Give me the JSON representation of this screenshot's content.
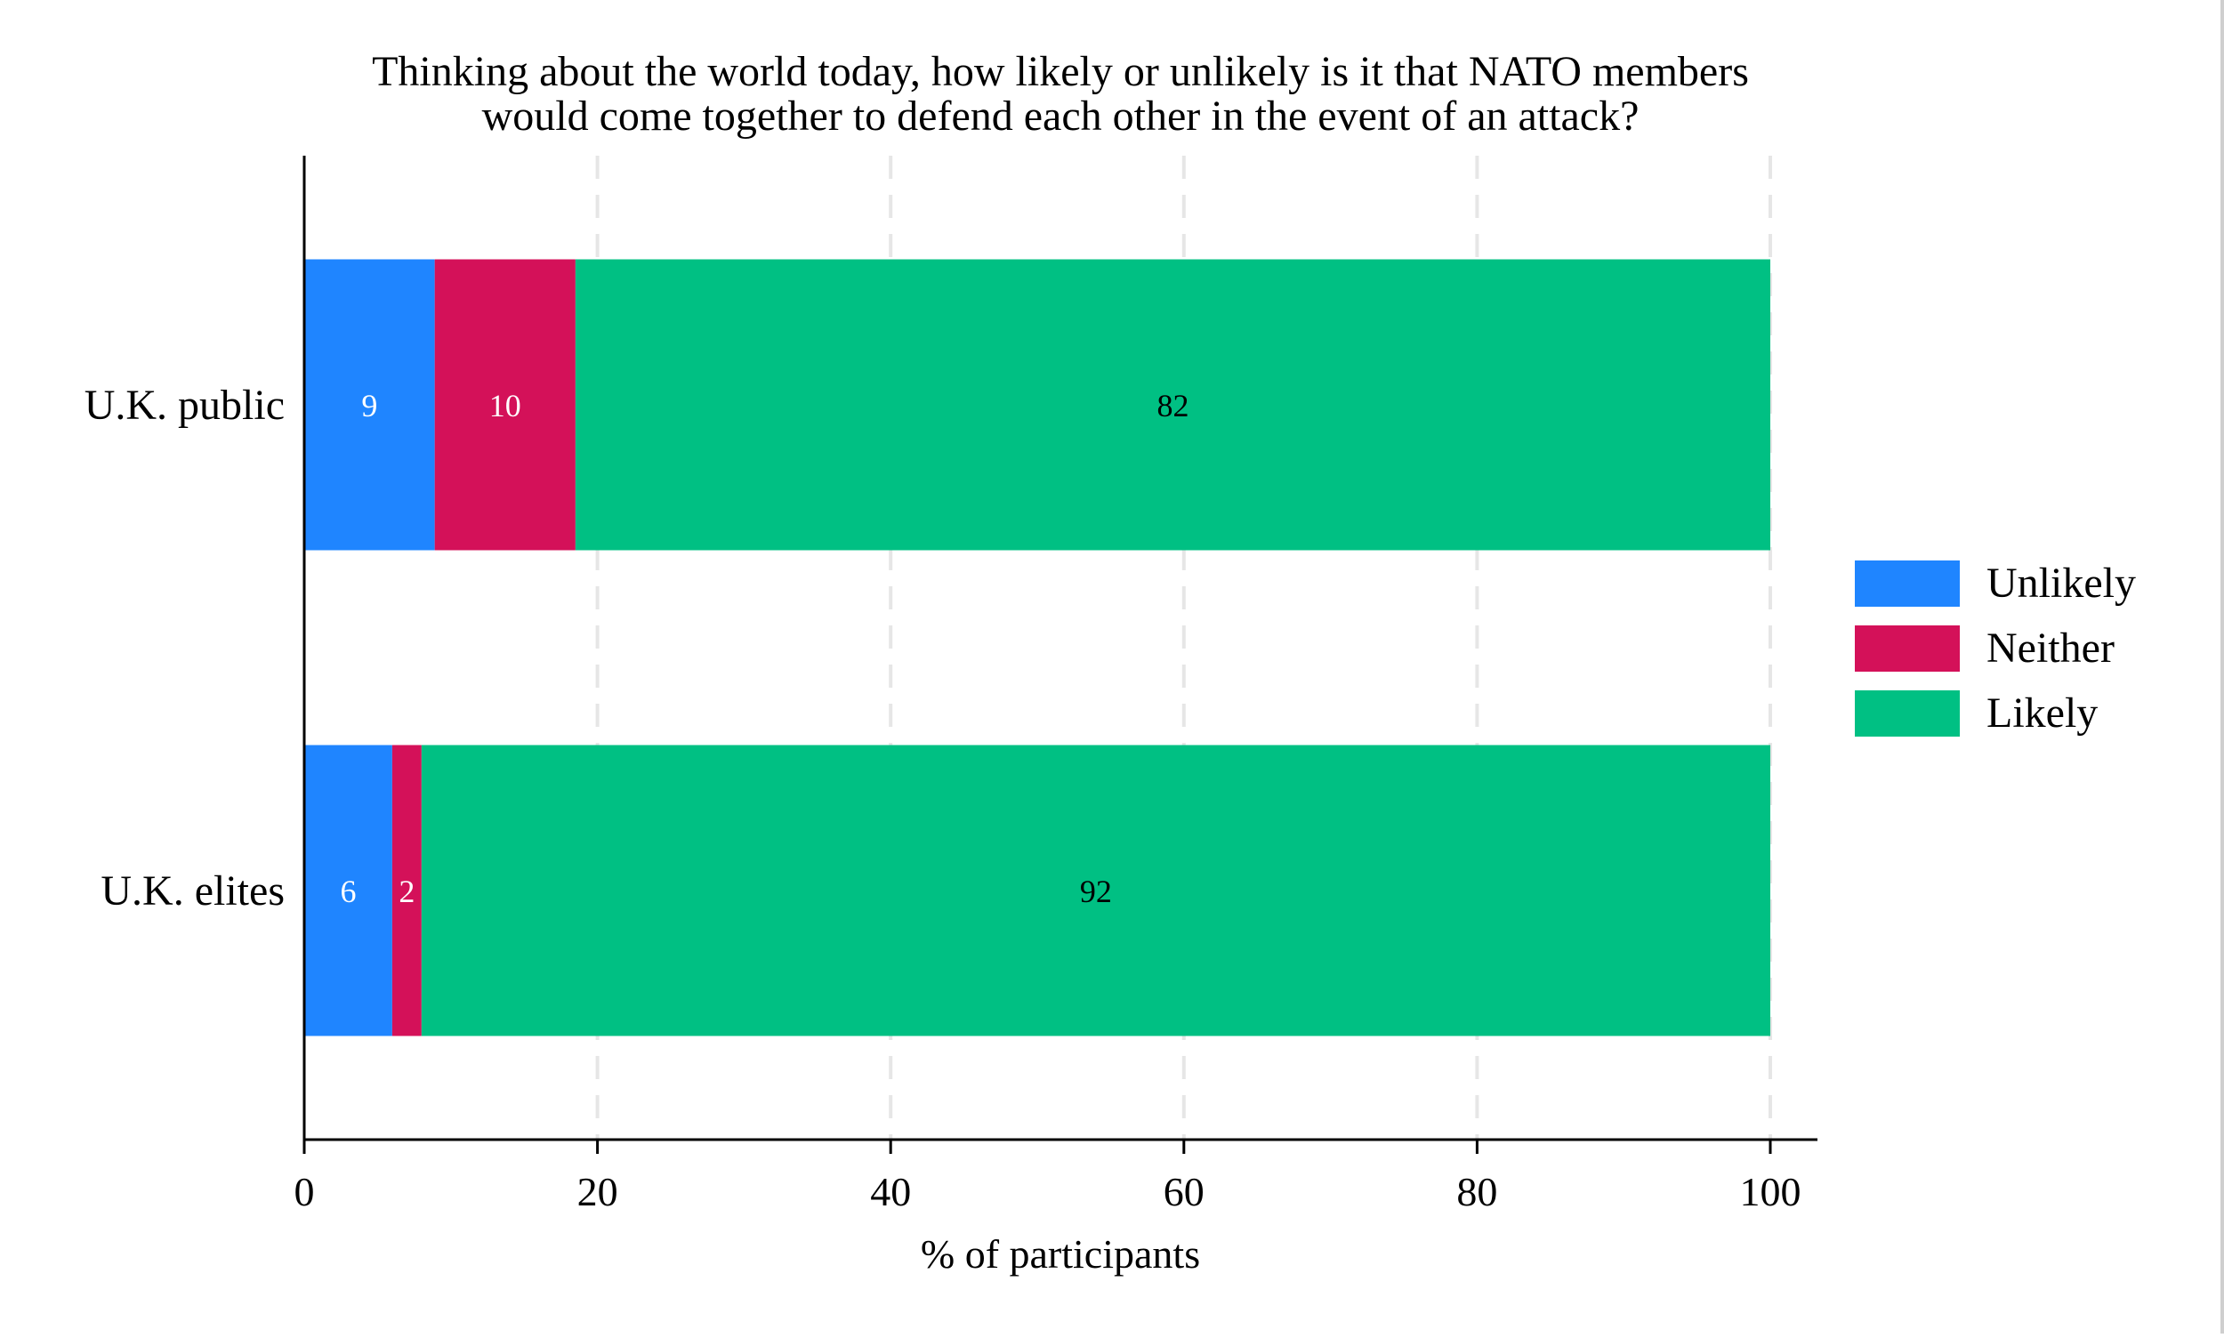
{
  "chart_data": {
    "type": "bar",
    "orientation": "horizontal",
    "stacked": true,
    "title": "Thinking about the world today, how likely or unlikely is it that NATO members would come together to defend each other in the event of an attack?",
    "title_lines": [
      "Thinking about the world today, how likely or unlikely is it that NATO members",
      "would come together to defend each other in the event of an attack?"
    ],
    "xlabel": "% of participants",
    "ylabel": "",
    "xlim": [
      0,
      100
    ],
    "xticks": [
      0,
      20,
      40,
      60,
      80,
      100
    ],
    "grid": "vertical dashed",
    "legend_position": "right",
    "categories": [
      "U.K. public",
      "U.K. elites"
    ],
    "series": [
      {
        "name": "Unlikely",
        "color": "#1f85ff",
        "values": [
          8.9,
          6
        ],
        "labels": [
          "9",
          "6"
        ],
        "label_color": "#ffffff"
      },
      {
        "name": "Neither",
        "color": "#d41159",
        "values": [
          9.6,
          2
        ],
        "labels": [
          "10",
          "2"
        ],
        "label_color": "#ffffff"
      },
      {
        "name": "Likely",
        "color": "#00c083",
        "values": [
          81.5,
          92
        ],
        "labels": [
          "82",
          "92"
        ],
        "label_color": "#000000"
      }
    ]
  }
}
